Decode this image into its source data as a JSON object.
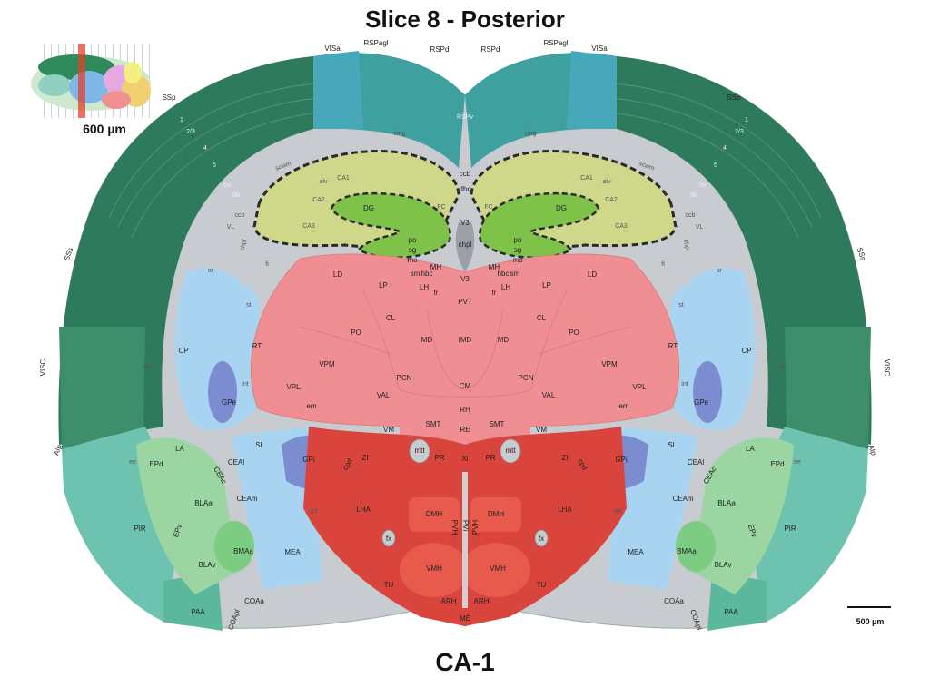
{
  "title": "Slice 8 - Posterior",
  "subtitle": "CA-1",
  "inset": {
    "scale_label": "600 µm"
  },
  "scale_bar": {
    "label": "500 µm"
  },
  "colors": {
    "cortex_dark": "#2e7a5c",
    "cortex_mid": "#3d8f6c",
    "rsp": "#3fa0a0",
    "vis": "#46a8b8",
    "fiber": "#c8ccd0",
    "hippo_ca": "#cfd88a",
    "hippo_dg": "#7fc24a",
    "thalamus": "#ef8f94",
    "thalamus_light": "#f2a0a5",
    "hypothal": "#d9453c",
    "striatum": "#a8d4f2",
    "pallidum": "#7b8ccf",
    "amygdala": "#9bd6a2",
    "olfactory": "#6ec3b0",
    "highlight_dash": "#2a2a2a"
  },
  "labels": {
    "left": {
      "SSp": "SSp",
      "L1": "1",
      "L23": "2/3",
      "L4": "4",
      "L5": "5",
      "L6a": "6a",
      "L6b": "6b",
      "SSs": "SSs",
      "VISC": "VISC",
      "AIp": "AIp",
      "PIR": "PIR",
      "PAA": "PAA",
      "COApl": "COApl",
      "COAa": "COAa",
      "EPd": "EPd",
      "EPv": "EPv",
      "LA": "LA",
      "BLAa": "BLAa",
      "BLAv": "BLAv",
      "BMAa": "BMAa",
      "CEAl": "CEAl",
      "CEAc": "CEAc",
      "CEAm": "CEAm",
      "MEA": "MEA",
      "CP": "CP",
      "GPe": "GPe",
      "GPi": "GPi",
      "SI": "SI",
      "ec": "ec",
      "ee": "ee",
      "int": "int",
      "or": "or",
      "fi": "fi",
      "st": "st",
      "VL": "VL",
      "chpl": "chpl",
      "ccb": "ccb",
      "cing": "cing",
      "scwm": "scwm",
      "alv": "alv",
      "CA1": "CA1",
      "CA2": "CA2",
      "CA3": "CA3",
      "DG": "DG",
      "po": "po",
      "sg": "sg",
      "mo": "mo",
      "RSPagl": "RSPagl",
      "RSPd": "RSPd",
      "VISa": "VISa",
      "RT": "RT",
      "VPL": "VPL",
      "VPM": "VPM",
      "PO": "PO",
      "LD": "LD",
      "LP": "LP",
      "LH": "LH",
      "MH": "MH",
      "CL": "CL",
      "MD": "MD",
      "PCN": "PCN",
      "VAL": "VAL",
      "VM": "VM",
      "SMT": "SMT",
      "ZI": "ZI",
      "LHA": "LHA",
      "DMH": "DMH",
      "VMH": "VMH",
      "ARH": "ARH",
      "TU": "TU",
      "PVH": "PVH",
      "fx": "fx",
      "opt": "opt",
      "em": "em",
      "mtt": "mtt",
      "PR": "PR",
      "sm": "sm",
      "hbc": "hbc",
      "fr": "fr",
      "cpd": "cpd",
      "FC": "FC"
    },
    "midline": {
      "RSPv": "RSPv",
      "ccb": "ccb",
      "dhc": "dhc",
      "V3": "V3",
      "chpl": "chpl",
      "MH": "MH",
      "PVT": "PVT",
      "IMD": "IMD",
      "CM": "CM",
      "RH": "RH",
      "RE": "RE",
      "Xi": "Xi",
      "PVi": "PVi",
      "ME": "ME"
    }
  }
}
